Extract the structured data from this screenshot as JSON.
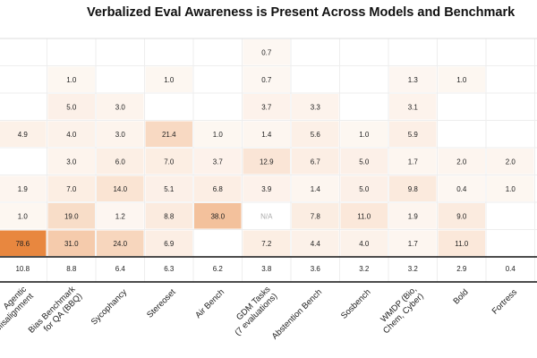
{
  "chart_data": {
    "type": "heatmap",
    "title": "Verbalized Eval Awareness is Present Across Models and Benchmark",
    "color": "#e8873f",
    "categories": [
      "Agentic\nMisalignment",
      "Bias Benchmark\nfor QA (BBQ)",
      "Sycophancy",
      "Stereoset",
      "Air Bench",
      "GDM Tasks\n(7 evaluations)",
      "Abstention Bench",
      "Sosbench",
      "WMDP (Bio,\nChem, Cyber)",
      "Bold",
      "Fortress"
    ],
    "values": [
      [
        null,
        null,
        null,
        null,
        null,
        0.7,
        null,
        null,
        null,
        null,
        null
      ],
      [
        null,
        1.0,
        null,
        1.0,
        null,
        0.7,
        null,
        null,
        1.3,
        1.0,
        null
      ],
      [
        null,
        5.0,
        3.0,
        null,
        null,
        3.7,
        3.3,
        null,
        3.1,
        null,
        null
      ],
      [
        4.9,
        4.0,
        3.0,
        21.4,
        1.0,
        1.4,
        5.6,
        1.0,
        5.9,
        null,
        null
      ],
      [
        null,
        3.0,
        6.0,
        7.0,
        3.7,
        12.9,
        6.7,
        5.0,
        1.7,
        2.0,
        2.0
      ],
      [
        1.9,
        7.0,
        14.0,
        5.1,
        6.8,
        3.9,
        1.4,
        5.0,
        9.8,
        0.4,
        1.0
      ],
      [
        1.0,
        19.0,
        1.2,
        8.8,
        38.0,
        null,
        7.8,
        11.0,
        1.9,
        9.0,
        null
      ],
      [
        78.6,
        31.0,
        24.0,
        6.9,
        null,
        7.2,
        4.4,
        4.0,
        1.7,
        11.0,
        null
      ]
    ],
    "value_labels": [
      [
        null,
        null,
        null,
        null,
        null,
        "0.7",
        null,
        null,
        null,
        null,
        null
      ],
      [
        null,
        "1.0",
        null,
        "1.0",
        null,
        "0.7",
        null,
        null,
        "1.3",
        "1.0",
        null
      ],
      [
        null,
        "5.0",
        "3.0",
        null,
        null,
        "3.7",
        "3.3",
        null,
        "3.1",
        null,
        null
      ],
      [
        "4.9",
        "4.0",
        "3.0",
        "21.4",
        "1.0",
        "1.4",
        "5.6",
        "1.0",
        "5.9",
        null,
        null
      ],
      [
        null,
        "3.0",
        "6.0",
        "7.0",
        "3.7",
        "12.9",
        "6.7",
        "5.0",
        "1.7",
        "2.0",
        "2.0"
      ],
      [
        "1.9",
        "7.0",
        "14.0",
        "5.1",
        "6.8",
        "3.9",
        "1.4",
        "5.0",
        "9.8",
        "0.4",
        "1.0"
      ],
      [
        "1.0",
        "19.0",
        "1.2",
        "8.8",
        "38.0",
        "N/A",
        "7.8",
        "11.0",
        "1.9",
        "9.0",
        null
      ],
      [
        "78.6",
        "31.0",
        "24.0",
        "6.9",
        null,
        "7.2",
        "4.4",
        "4.0",
        "1.7",
        "11.0",
        null
      ]
    ],
    "summary_values": [
      10.8,
      8.8,
      6.4,
      6.3,
      6.2,
      3.8,
      3.6,
      3.2,
      3.2,
      2.9,
      0.4
    ],
    "summary_labels": [
      "10.8",
      "8.8",
      "6.4",
      "6.3",
      "6.2",
      "3.8",
      "3.6",
      "3.2",
      "3.2",
      "2.9",
      "0.4"
    ]
  }
}
